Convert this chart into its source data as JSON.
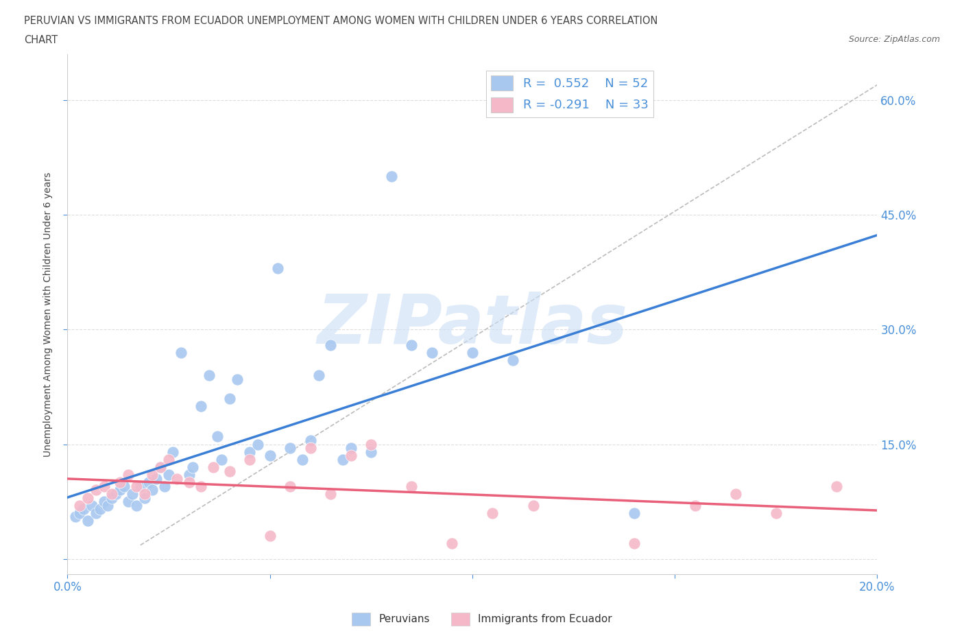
{
  "title_line1": "PERUVIAN VS IMMIGRANTS FROM ECUADOR UNEMPLOYMENT AMONG WOMEN WITH CHILDREN UNDER 6 YEARS CORRELATION",
  "title_line2": "CHART",
  "source": "Source: ZipAtlas.com",
  "ylabel": "Unemployment Among Women with Children Under 6 years",
  "xlim": [
    0.0,
    0.2
  ],
  "ylim": [
    -0.02,
    0.66
  ],
  "xticks": [
    0.0,
    0.05,
    0.1,
    0.15,
    0.2
  ],
  "xtick_labels": [
    "0.0%",
    "",
    "",
    "",
    "20.0%"
  ],
  "yticks": [
    0.0,
    0.15,
    0.3,
    0.45,
    0.6
  ],
  "ytick_labels": [
    "",
    "15.0%",
    "30.0%",
    "45.0%",
    "60.0%"
  ],
  "blue_color": "#a8c8f0",
  "pink_color": "#f5b8c8",
  "blue_line_color": "#3a7fd5",
  "pink_line_color": "#e8607a",
  "ref_line_color": "#bbbbbb",
  "blue_scatter_x": [
    0.002,
    0.003,
    0.004,
    0.005,
    0.006,
    0.007,
    0.008,
    0.009,
    0.01,
    0.011,
    0.012,
    0.013,
    0.014,
    0.015,
    0.016,
    0.017,
    0.018,
    0.019,
    0.02,
    0.021,
    0.022,
    0.023,
    0.024,
    0.025,
    0.026,
    0.028,
    0.03,
    0.031,
    0.033,
    0.035,
    0.037,
    0.038,
    0.04,
    0.042,
    0.045,
    0.047,
    0.05,
    0.052,
    0.055,
    0.058,
    0.06,
    0.062,
    0.065,
    0.068,
    0.07,
    0.075,
    0.08,
    0.085,
    0.09,
    0.1,
    0.11,
    0.14
  ],
  "blue_scatter_y": [
    0.055,
    0.06,
    0.065,
    0.05,
    0.07,
    0.06,
    0.065,
    0.075,
    0.07,
    0.08,
    0.085,
    0.09,
    0.095,
    0.075,
    0.085,
    0.07,
    0.095,
    0.08,
    0.1,
    0.09,
    0.105,
    0.12,
    0.095,
    0.11,
    0.14,
    0.27,
    0.11,
    0.12,
    0.2,
    0.24,
    0.16,
    0.13,
    0.21,
    0.235,
    0.14,
    0.15,
    0.135,
    0.38,
    0.145,
    0.13,
    0.155,
    0.24,
    0.28,
    0.13,
    0.145,
    0.14,
    0.5,
    0.28,
    0.27,
    0.27,
    0.26,
    0.06
  ],
  "pink_scatter_x": [
    0.003,
    0.005,
    0.007,
    0.009,
    0.011,
    0.013,
    0.015,
    0.017,
    0.019,
    0.021,
    0.023,
    0.025,
    0.027,
    0.03,
    0.033,
    0.036,
    0.04,
    0.045,
    0.05,
    0.055,
    0.06,
    0.065,
    0.07,
    0.075,
    0.085,
    0.095,
    0.105,
    0.115,
    0.14,
    0.155,
    0.165,
    0.175,
    0.19
  ],
  "pink_scatter_y": [
    0.07,
    0.08,
    0.09,
    0.095,
    0.085,
    0.1,
    0.11,
    0.095,
    0.085,
    0.11,
    0.12,
    0.13,
    0.105,
    0.1,
    0.095,
    0.12,
    0.115,
    0.13,
    0.03,
    0.095,
    0.145,
    0.085,
    0.135,
    0.15,
    0.095,
    0.02,
    0.06,
    0.07,
    0.02,
    0.07,
    0.085,
    0.06,
    0.095
  ],
  "background_color": "#ffffff",
  "grid_color": "#dddddd",
  "watermark_text": "ZIPatlas",
  "watermark_color": "#ccdff5",
  "legend_text": [
    "R =  0.552    N = 52",
    "R = -0.291    N = 33"
  ],
  "bottom_legend_labels": [
    "Peruvians",
    "Immigrants from Ecuador"
  ]
}
